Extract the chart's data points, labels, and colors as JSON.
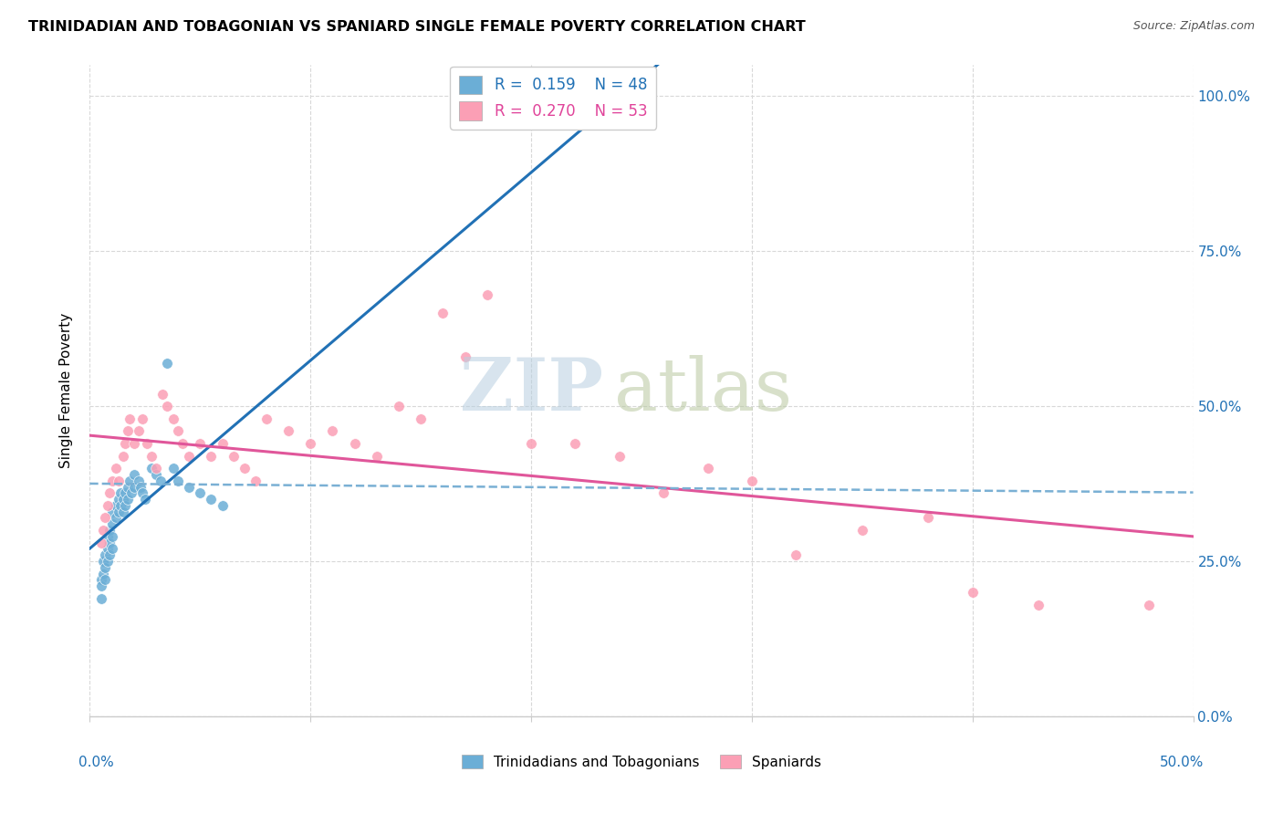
{
  "title": "TRINIDADIAN AND TOBAGONIAN VS SPANIARD SINGLE FEMALE POVERTY CORRELATION CHART",
  "source": "Source: ZipAtlas.com",
  "ylabel": "Single Female Poverty",
  "yticks": [
    "0.0%",
    "25.0%",
    "50.0%",
    "75.0%",
    "100.0%"
  ],
  "ytick_vals": [
    0.0,
    0.25,
    0.5,
    0.75,
    1.0
  ],
  "xlim": [
    0.0,
    0.5
  ],
  "ylim": [
    0.0,
    1.05
  ],
  "color_blue": "#6baed6",
  "color_pink": "#fb9fb5",
  "color_blue_dark": "#2171b5",
  "color_pink_dark": "#e0569a",
  "legend_label1": "Trinidadians and Tobagonians",
  "legend_label2": "Spaniards",
  "trinidadian_x": [
    0.005,
    0.005,
    0.005,
    0.006,
    0.006,
    0.007,
    0.007,
    0.007,
    0.008,
    0.008,
    0.008,
    0.009,
    0.009,
    0.009,
    0.01,
    0.01,
    0.01,
    0.01,
    0.012,
    0.012,
    0.013,
    0.013,
    0.014,
    0.014,
    0.015,
    0.015,
    0.016,
    0.016,
    0.017,
    0.017,
    0.018,
    0.019,
    0.02,
    0.02,
    0.022,
    0.023,
    0.024,
    0.025,
    0.028,
    0.03,
    0.032,
    0.035,
    0.038,
    0.04,
    0.045,
    0.05,
    0.055,
    0.06
  ],
  "trinidadian_y": [
    0.22,
    0.21,
    0.19,
    0.25,
    0.23,
    0.26,
    0.24,
    0.22,
    0.29,
    0.27,
    0.25,
    0.3,
    0.28,
    0.26,
    0.33,
    0.31,
    0.29,
    0.27,
    0.34,
    0.32,
    0.35,
    0.33,
    0.36,
    0.34,
    0.35,
    0.33,
    0.36,
    0.34,
    0.37,
    0.35,
    0.38,
    0.36,
    0.39,
    0.37,
    0.38,
    0.37,
    0.36,
    0.35,
    0.4,
    0.39,
    0.38,
    0.57,
    0.4,
    0.38,
    0.37,
    0.36,
    0.35,
    0.34
  ],
  "spaniard_x": [
    0.005,
    0.006,
    0.007,
    0.008,
    0.009,
    0.01,
    0.012,
    0.013,
    0.015,
    0.016,
    0.017,
    0.018,
    0.02,
    0.022,
    0.024,
    0.026,
    0.028,
    0.03,
    0.033,
    0.035,
    0.038,
    0.04,
    0.042,
    0.045,
    0.05,
    0.055,
    0.06,
    0.065,
    0.07,
    0.075,
    0.08,
    0.09,
    0.1,
    0.11,
    0.12,
    0.13,
    0.14,
    0.15,
    0.16,
    0.17,
    0.18,
    0.2,
    0.22,
    0.24,
    0.26,
    0.28,
    0.3,
    0.32,
    0.35,
    0.38,
    0.4,
    0.43,
    0.48
  ],
  "spaniard_y": [
    0.28,
    0.3,
    0.32,
    0.34,
    0.36,
    0.38,
    0.4,
    0.38,
    0.42,
    0.44,
    0.46,
    0.48,
    0.44,
    0.46,
    0.48,
    0.44,
    0.42,
    0.4,
    0.52,
    0.5,
    0.48,
    0.46,
    0.44,
    0.42,
    0.44,
    0.42,
    0.44,
    0.42,
    0.4,
    0.38,
    0.48,
    0.46,
    0.44,
    0.46,
    0.44,
    0.42,
    0.5,
    0.48,
    0.65,
    0.58,
    0.68,
    0.44,
    0.44,
    0.42,
    0.36,
    0.4,
    0.38,
    0.26,
    0.3,
    0.32,
    0.2,
    0.18,
    0.18
  ]
}
